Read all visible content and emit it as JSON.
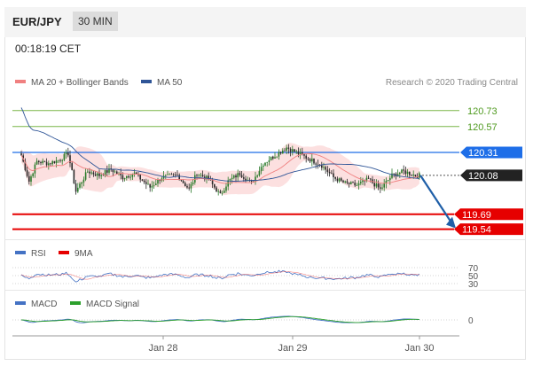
{
  "header": {
    "pair": "EUR/JPY",
    "timeframe": "30 MIN"
  },
  "timestamp": "00:18:19 CET",
  "chart_data": {
    "type": "candlestick",
    "symbol": "EUR/JPY",
    "interval": "30 MIN",
    "legend": [
      {
        "name": "MA 20 + Bollinger Bands",
        "color": "#f08080"
      },
      {
        "name": "MA 50",
        "color": "#2f5597"
      }
    ],
    "credit": "Research © 2020 Trading Central",
    "x_labels": [
      "Jan 28",
      "Jan 29",
      "Jan 30"
    ],
    "levels": [
      {
        "value": 120.73,
        "label": "120.73",
        "type": "resistance",
        "color": "#7ab648"
      },
      {
        "value": 120.57,
        "label": "120.57",
        "type": "resistance",
        "color": "#7ab648"
      },
      {
        "value": 120.31,
        "label": "120.31",
        "type": "pivot",
        "color": "#1e6ee8"
      },
      {
        "value": 120.08,
        "label": "120.08",
        "type": "last",
        "color": "#222222"
      },
      {
        "value": 119.69,
        "label": "119.69",
        "type": "target",
        "color": "#e60000"
      },
      {
        "value": 119.54,
        "label": "119.54",
        "type": "target",
        "color": "#e60000"
      }
    ],
    "path_anchors": [
      [
        0,
        120.28
      ],
      [
        4,
        120.02
      ],
      [
        8,
        120.22
      ],
      [
        14,
        120.2
      ],
      [
        20,
        120.24
      ],
      [
        24,
        120.3
      ],
      [
        28,
        119.92
      ],
      [
        34,
        120.12
      ],
      [
        40,
        120.08
      ],
      [
        46,
        120.14
      ],
      [
        52,
        120.06
      ],
      [
        58,
        120.1
      ],
      [
        66,
        119.96
      ],
      [
        72,
        120.06
      ],
      [
        80,
        120.08
      ],
      [
        86,
        119.94
      ],
      [
        90,
        120.1
      ],
      [
        96,
        120.04
      ],
      [
        102,
        119.88
      ],
      [
        106,
        120.02
      ],
      [
        112,
        120.1
      ],
      [
        118,
        120.0
      ],
      [
        124,
        120.2
      ],
      [
        130,
        120.28
      ],
      [
        136,
        120.36
      ],
      [
        142,
        120.3
      ],
      [
        148,
        120.24
      ],
      [
        154,
        120.18
      ],
      [
        160,
        120.06
      ],
      [
        166,
        120.0
      ],
      [
        172,
        119.98
      ],
      [
        178,
        120.04
      ],
      [
        184,
        119.94
      ],
      [
        190,
        120.08
      ],
      [
        196,
        120.12
      ],
      [
        202,
        120.08
      ]
    ],
    "projection": {
      "from": 120.08,
      "to": 119.54
    },
    "rsi": {
      "legend": [
        "RSI",
        "9MA"
      ],
      "legend_colors": [
        "#4472c4",
        "#e60000"
      ],
      "levels": [
        70,
        50,
        30
      ]
    },
    "macd": {
      "legend": [
        "MACD",
        "MACD Signal"
      ],
      "legend_colors": [
        "#4472c4",
        "#2ca02c"
      ],
      "zero_label": "0"
    }
  }
}
